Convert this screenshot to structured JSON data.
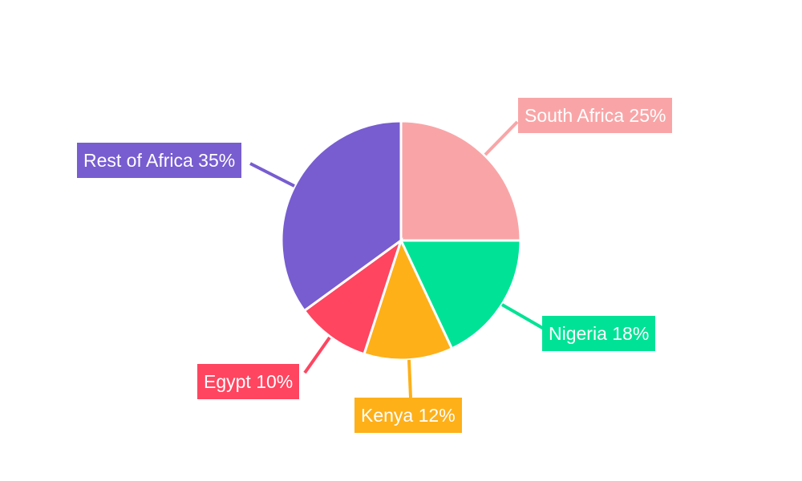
{
  "chart_data": {
    "type": "pie",
    "title": "",
    "start_angle": "top, clockwise",
    "legend": "none",
    "slices": [
      {
        "label": "South Africa",
        "value": 25,
        "display": "South Africa 25%",
        "color": "#F9A5A7"
      },
      {
        "label": "Nigeria",
        "value": 18,
        "display": "Nigeria 18%",
        "color": "#00E396"
      },
      {
        "label": "Kenya",
        "value": 12,
        "display": "Kenya 12%",
        "color": "#FEB019"
      },
      {
        "label": "Egypt",
        "value": 10,
        "display": "Egypt 10%",
        "color": "#FF4560"
      },
      {
        "label": "Rest of Africa",
        "value": 35,
        "display": "Rest of Africa 35%",
        "color": "#775DD0"
      }
    ]
  }
}
